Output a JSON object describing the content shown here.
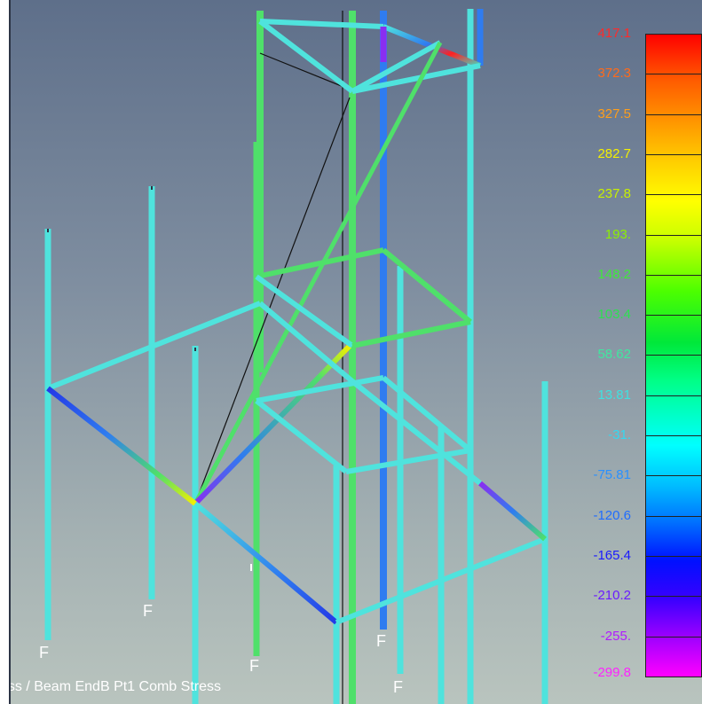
{
  "view": {
    "caption": "ess / Beam EndB Pt1 Comb Stress",
    "fixed_support_label": "F"
  },
  "legend": {
    "levels": [
      {
        "label": "417.1",
        "color": "#ff2a2a"
      },
      {
        "label": "372.3",
        "color": "#ff6a1a"
      },
      {
        "label": "327.5",
        "color": "#ff9e1a"
      },
      {
        "label": "282.7",
        "color": "#f4f000"
      },
      {
        "label": "237.8",
        "color": "#c8f000"
      },
      {
        "label": "193.",
        "color": "#8cf000"
      },
      {
        "label": "148.2",
        "color": "#3fe83a"
      },
      {
        "label": "103.4",
        "color": "#2de050"
      },
      {
        "label": "58.62",
        "color": "#3fe8a0"
      },
      {
        "label": "13.81",
        "color": "#3fe0e0"
      },
      {
        "label": "-31.",
        "color": "#34d8f0"
      },
      {
        "label": "-75.81",
        "color": "#2a90ff"
      },
      {
        "label": "-120.6",
        "color": "#1f6cff"
      },
      {
        "label": "-165.4",
        "color": "#1a1aff"
      },
      {
        "label": "-210.2",
        "color": "#6a1aff"
      },
      {
        "label": "-255.",
        "color": "#b01aff"
      },
      {
        "label": "-299.8",
        "color": "#ff22ff"
      }
    ]
  },
  "colors": {
    "cyan": "#4fe3dd",
    "teal": "#41d8c3",
    "green": "#4fe06a",
    "blue": "#2f7cf0",
    "deep_blue": "#2438e6",
    "purple": "#8a2ef0",
    "yellow": "#f5f000",
    "orange": "#ff8a00",
    "red": "#ff2020"
  }
}
